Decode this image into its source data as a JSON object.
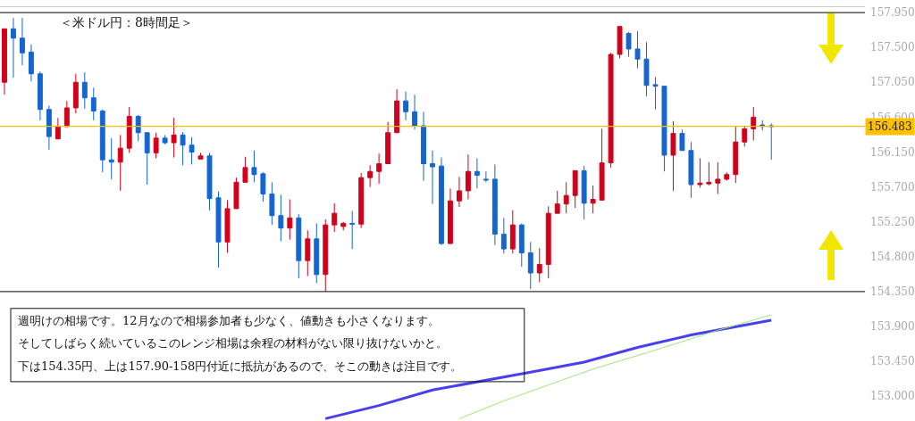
{
  "chart_data": {
    "type": "candlestick",
    "title": "＜米ドル円：8時間足＞",
    "categories": [
      null,
      null,
      null,
      null,
      null,
      null,
      null,
      null,
      null,
      null,
      null,
      null,
      null,
      null,
      null,
      null,
      null,
      null,
      null,
      null,
      null,
      null,
      null,
      null,
      null,
      null,
      null,
      null,
      null,
      null,
      null,
      null,
      null,
      null,
      null,
      null,
      null,
      null,
      null,
      null,
      null,
      null,
      null,
      null,
      null,
      null,
      null,
      null,
      null,
      null,
      null,
      null,
      null,
      null,
      null,
      null,
      null,
      null,
      null,
      null,
      null,
      null,
      null,
      null,
      null,
      null,
      null,
      null,
      null,
      null,
      null,
      null,
      null,
      null,
      null,
      null,
      null,
      null,
      null,
      null,
      null,
      null,
      null,
      null,
      null,
      null,
      null,
      null,
      null,
      null,
      null,
      null,
      null,
      null,
      null,
      null,
      null
    ],
    "ohlc": [
      [
        157.05,
        157.74,
        156.89,
        157.74
      ],
      [
        157.74,
        157.88,
        157.11,
        157.62
      ],
      [
        157.62,
        157.88,
        157.27,
        157.43
      ],
      [
        157.44,
        157.54,
        157.06,
        157.16
      ],
      [
        157.16,
        157.19,
        156.56,
        156.7
      ],
      [
        156.7,
        156.75,
        156.18,
        156.35
      ],
      [
        156.32,
        156.59,
        156.32,
        156.48
      ],
      [
        156.48,
        156.81,
        156.47,
        156.72
      ],
      [
        156.72,
        157.16,
        156.65,
        157.05
      ],
      [
        157.05,
        157.18,
        156.71,
        156.85
      ],
      [
        156.85,
        156.98,
        156.56,
        156.68
      ],
      [
        156.68,
        156.7,
        155.89,
        156.05
      ],
      [
        156.05,
        156.33,
        155.8,
        156.02
      ],
      [
        156.02,
        156.37,
        155.65,
        156.2
      ],
      [
        156.2,
        156.73,
        156.14,
        156.61
      ],
      [
        156.61,
        156.63,
        156.29,
        156.4
      ],
      [
        156.4,
        156.4,
        155.73,
        156.14
      ],
      [
        156.14,
        156.4,
        156.07,
        156.33
      ],
      [
        156.33,
        156.37,
        156.25,
        156.27
      ],
      [
        156.27,
        156.59,
        156.08,
        156.37
      ],
      [
        156.37,
        156.41,
        155.98,
        156.24
      ],
      [
        156.24,
        156.34,
        155.99,
        156.15
      ],
      [
        156.06,
        156.14,
        156.06,
        156.1
      ],
      [
        156.1,
        156.14,
        155.4,
        155.55
      ],
      [
        155.56,
        155.64,
        154.66,
        154.99
      ],
      [
        154.99,
        155.53,
        154.85,
        155.42
      ],
      [
        155.42,
        155.82,
        155.42,
        155.76
      ],
      [
        155.76,
        156.09,
        155.76,
        155.95
      ],
      [
        155.95,
        156.17,
        155.76,
        155.86
      ],
      [
        155.87,
        155.89,
        155.51,
        155.61
      ],
      [
        155.61,
        155.76,
        155.21,
        155.33
      ],
      [
        155.33,
        155.6,
        155.0,
        155.17
      ],
      [
        155.17,
        155.54,
        155.02,
        155.3
      ],
      [
        155.3,
        155.35,
        154.52,
        154.75
      ],
      [
        154.75,
        155.14,
        154.55,
        155.03
      ],
      [
        155.03,
        155.23,
        154.46,
        154.57
      ],
      [
        154.57,
        155.28,
        154.35,
        155.21
      ],
      [
        155.21,
        155.49,
        155.12,
        155.36
      ],
      [
        155.19,
        155.25,
        155.14,
        155.23
      ],
      [
        155.23,
        155.39,
        154.9,
        155.22
      ],
      [
        155.22,
        155.88,
        155.17,
        155.82
      ],
      [
        155.82,
        155.98,
        155.7,
        155.9
      ],
      [
        155.9,
        156.13,
        155.74,
        156.0
      ],
      [
        156.0,
        156.54,
        156.0,
        156.4
      ],
      [
        156.4,
        156.96,
        156.4,
        156.81
      ],
      [
        156.81,
        156.93,
        156.56,
        156.67
      ],
      [
        156.67,
        156.89,
        156.44,
        156.49
      ],
      [
        156.49,
        156.67,
        155.78,
        156.0
      ],
      [
        156.0,
        156.17,
        155.48,
        155.96
      ],
      [
        155.97,
        156.08,
        154.95,
        154.97
      ],
      [
        154.97,
        155.68,
        154.96,
        155.52
      ],
      [
        155.52,
        155.83,
        155.44,
        155.65
      ],
      [
        155.65,
        156.12,
        155.54,
        155.9
      ],
      [
        155.9,
        156.07,
        155.68,
        155.85
      ],
      [
        155.8,
        155.9,
        155.76,
        155.79
      ],
      [
        155.8,
        155.99,
        154.95,
        155.09
      ],
      [
        155.09,
        155.3,
        154.84,
        154.9
      ],
      [
        154.9,
        155.4,
        154.84,
        155.21
      ],
      [
        155.21,
        155.23,
        154.67,
        154.85
      ],
      [
        154.85,
        154.99,
        154.38,
        154.59
      ],
      [
        154.59,
        154.91,
        154.47,
        154.7
      ],
      [
        154.7,
        155.45,
        154.52,
        155.36
      ],
      [
        155.36,
        155.65,
        155.36,
        155.48
      ],
      [
        155.48,
        155.76,
        155.36,
        155.59
      ],
      [
        155.59,
        155.91,
        155.43,
        155.91
      ],
      [
        155.91,
        155.97,
        155.28,
        155.49
      ],
      [
        155.49,
        155.72,
        155.36,
        155.54
      ],
      [
        155.53,
        156.45,
        155.53,
        156.01
      ],
      [
        156.01,
        157.43,
        155.95,
        157.41
      ],
      [
        157.41,
        157.77,
        157.36,
        157.77
      ],
      [
        157.68,
        157.7,
        157.38,
        157.48
      ],
      [
        157.48,
        157.71,
        157.23,
        157.35
      ],
      [
        157.35,
        157.57,
        156.87,
        157.01
      ],
      [
        157.02,
        157.12,
        156.7,
        157.0
      ],
      [
        157.0,
        157.0,
        155.9,
        156.11
      ],
      [
        156.11,
        156.55,
        155.65,
        156.39
      ],
      [
        156.39,
        156.44,
        156.17,
        156.17
      ],
      [
        156.17,
        156.28,
        155.56,
        155.73
      ],
      [
        155.73,
        156.07,
        155.69,
        155.75
      ],
      [
        155.74,
        156.02,
        155.72,
        155.76
      ],
      [
        155.75,
        156.02,
        155.61,
        155.8
      ],
      [
        155.8,
        155.89,
        155.78,
        155.86
      ],
      [
        155.86,
        156.49,
        155.75,
        156.28
      ],
      [
        156.28,
        156.48,
        156.22,
        156.45
      ],
      [
        156.45,
        156.73,
        156.3,
        156.6
      ],
      [
        156.5,
        156.56,
        156.43,
        156.48
      ],
      [
        156.49,
        156.52,
        156.05,
        156.48
      ],
      null,
      null,
      null,
      null,
      null,
      null,
      null,
      null,
      null,
      null
    ],
    "colors": [
      "#d3001c",
      "#1565d0",
      "#1565d0",
      "#1565d0",
      "#1565d0",
      "#1565d0",
      "#d3001c",
      "#d3001c",
      "#d3001c",
      "#1565d0",
      "#1565d0",
      "#1565d0",
      "#1565d0",
      "#d3001c",
      "#d3001c",
      "#1565d0",
      "#1565d0",
      "#d3001c",
      "#1565d0",
      "#d3001c",
      "#1565d0",
      "#1565d0",
      "#d3001c",
      "#1565d0",
      "#1565d0",
      "#d3001c",
      "#d3001c",
      "#d3001c",
      "#1565d0",
      "#1565d0",
      "#1565d0",
      "#1565d0",
      "#d3001c",
      "#1565d0",
      "#d3001c",
      "#1565d0",
      "#d3001c",
      "#d3001c",
      "#d3001c",
      "#1565d0",
      "#d3001c",
      "#d3001c",
      "#d3001c",
      "#d3001c",
      "#d3001c",
      "#1565d0",
      "#1565d0",
      "#1565d0",
      "#1565d0",
      "#1565d0",
      "#d3001c",
      "#d3001c",
      "#d3001c",
      "#1565d0",
      "#1565d0",
      "#1565d0",
      "#1565d0",
      "#d3001c",
      "#1565d0",
      "#1565d0",
      "#d3001c",
      "#d3001c",
      "#d3001c",
      "#d3001c",
      "#d3001c",
      "#1565d0",
      "#d3001c",
      "#d3001c",
      "#d3001c",
      "#d3001c",
      "#1565d0",
      "#1565d0",
      "#1565d0",
      "#1565d0",
      "#1565d0",
      "#d3001c",
      "#1565d0",
      "#1565d0",
      "#d3001c",
      "#d3001c",
      "#d3001c",
      "#d3001c",
      "#d3001c",
      "#d3001c",
      "#d3001c",
      "#1565d0",
      "#1565d0",
      null,
      null,
      null,
      null,
      null,
      null,
      null,
      null,
      null,
      null
    ],
    "series": [
      {
        "type": "line",
        "color": "#4a3ff0",
        "values": [
          null,
          null,
          null,
          null,
          null,
          null,
          null,
          null,
          null,
          null,
          null,
          null,
          null,
          null,
          null,
          null,
          null,
          null,
          null,
          null,
          null,
          null,
          null,
          null,
          null,
          null,
          null,
          null,
          null,
          null,
          null,
          null,
          null,
          null,
          null,
          null,
          152.71,
          null,
          null,
          null,
          null,
          null,
          152.88,
          null,
          null,
          null,
          null,
          null,
          153.08,
          null,
          null,
          null,
          null,
          null,
          null,
          null,
          null,
          null,
          null,
          153.31,
          null,
          null,
          null,
          null,
          null,
          153.44,
          null,
          null,
          null,
          null,
          null,
          153.63,
          null,
          null,
          null,
          null,
          null,
          153.79,
          null,
          null,
          null,
          null,
          null,
          null,
          null,
          null,
          153.98,
          null,
          null,
          null,
          null,
          null,
          null,
          null,
          null,
          null,
          null
        ]
      },
      {
        "type": "line",
        "color": "#9be87a",
        "values": [
          null,
          null,
          null,
          null,
          null,
          null,
          null,
          null,
          null,
          null,
          null,
          null,
          null,
          null,
          null,
          null,
          null,
          null,
          null,
          null,
          null,
          null,
          null,
          null,
          null,
          null,
          null,
          null,
          null,
          null,
          null,
          null,
          null,
          null,
          null,
          null,
          null,
          null,
          null,
          null,
          null,
          null,
          null,
          null,
          null,
          null,
          null,
          null,
          null,
          null,
          null,
          152.71,
          null,
          null,
          null,
          null,
          152.94,
          null,
          null,
          null,
          null,
          null,
          null,
          null,
          null,
          null,
          153.35,
          null,
          null,
          null,
          null,
          null,
          153.56,
          null,
          null,
          null,
          null,
          null,
          null,
          null,
          153.85,
          null,
          null,
          null,
          null,
          null,
          154.05,
          null,
          null,
          null,
          null,
          null,
          null,
          null,
          null,
          null,
          null
        ]
      }
    ],
    "ylim": [
      152.68,
      158.02
    ],
    "yticks": [
      {
        "value": 157.95,
        "label": "157.950"
      },
      {
        "value": 157.5,
        "label": "157.500"
      },
      {
        "value": 157.05,
        "label": "157.050"
      },
      {
        "value": 156.6,
        "label": "156.600"
      },
      {
        "value": 156.15,
        "label": "156.150"
      },
      {
        "value": 155.7,
        "label": "155.700"
      },
      {
        "value": 155.25,
        "label": "155.250"
      },
      {
        "value": 154.8,
        "label": "154.800"
      },
      {
        "value": 154.35,
        "label": "154.350"
      },
      {
        "value": 153.9,
        "label": "153.900"
      },
      {
        "value": 153.45,
        "label": "153.450"
      },
      {
        "value": 153.0,
        "label": "153.000"
      }
    ],
    "ref_lines": [
      {
        "axis": "y",
        "value": 156.483,
        "label": "156.483",
        "color": "#ffc000"
      },
      {
        "axis": "y",
        "value": 157.95,
        "color": "#333333"
      },
      {
        "axis": "y",
        "value": 154.35,
        "color": "#333333"
      }
    ],
    "annotations": [
      "週明けの相場です。12月なので相場参加者も少なく、値動きも小さくなります。",
      "そしてしばらく続いているこのレンジ相場は余程の材料がない限り抜けないかと。",
      "下は154.35円、上は157.90-158円付近に抵抗があるので、そこの動きは注目です。"
    ],
    "tick_labels": "y"
  }
}
